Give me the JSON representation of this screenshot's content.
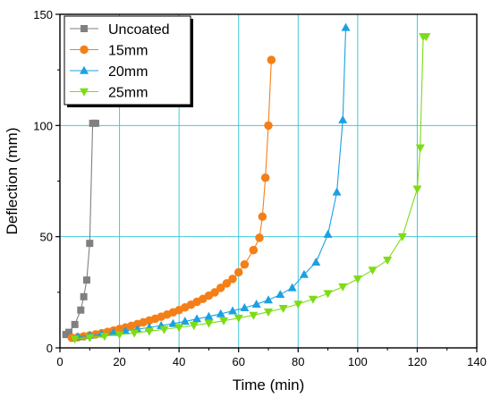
{
  "chart_data": {
    "type": "line",
    "title": "",
    "xlabel": "Time (min)",
    "ylabel": "Deflection (mm)",
    "xlim": [
      0,
      140
    ],
    "ylim": [
      0,
      150
    ],
    "x_ticks": [
      "0",
      "20",
      "40",
      "60",
      "80",
      "100",
      "120",
      "140"
    ],
    "y_ticks": [
      "0",
      "50",
      "100",
      "150"
    ],
    "grid": true,
    "grid_color": "#45c8dc",
    "legend_position": "top-left",
    "series": [
      {
        "name": "Uncoated",
        "color": "#808080",
        "marker": "square",
        "x": [
          2,
          3,
          5,
          7,
          8,
          9,
          10,
          11,
          12
        ],
        "y": [
          6,
          7,
          10.5,
          17,
          23,
          30.5,
          47,
          101,
          101
        ]
      },
      {
        "name": "15mm",
        "color": "#f57f17",
        "marker": "circle",
        "x": [
          4,
          6,
          8,
          10,
          12,
          14,
          16,
          18,
          20,
          22,
          24,
          26,
          28,
          30,
          32,
          34,
          36,
          38,
          40,
          42,
          44,
          46,
          48,
          50,
          52,
          54,
          56,
          58,
          60,
          62,
          65,
          67,
          68,
          69,
          70,
          71
        ],
        "y": [
          4.5,
          4.8,
          5.2,
          5.6,
          6.1,
          6.6,
          7.2,
          7.8,
          8.5,
          9.2,
          9.9,
          10.7,
          11.5,
          12.3,
          13.1,
          14,
          15,
          16,
          17,
          18.2,
          19.4,
          20.7,
          22,
          23.5,
          25,
          27,
          29,
          31,
          34,
          37.5,
          44,
          49.5,
          59,
          76.5,
          100,
          129.5
        ]
      },
      {
        "name": "20mm",
        "color": "#1ba1e2",
        "marker": "triangle-up",
        "x": [
          6,
          10,
          14,
          18,
          22,
          26,
          30,
          34,
          38,
          42,
          46,
          50,
          54,
          58,
          62,
          66,
          70,
          74,
          78,
          82,
          86,
          90,
          93,
          95,
          96
        ],
        "y": [
          5,
          5.6,
          6.2,
          6.9,
          7.6,
          8.4,
          9.2,
          10,
          10.9,
          11.9,
          13,
          14.1,
          15.3,
          16.6,
          18,
          19.6,
          21.5,
          24,
          27,
          33,
          38.5,
          51,
          70,
          102.5,
          144
        ]
      },
      {
        "name": "25mm",
        "color": "#7cdc16",
        "marker": "triangle-down",
        "x": [
          5,
          10,
          15,
          20,
          25,
          30,
          35,
          40,
          45,
          50,
          55,
          60,
          65,
          70,
          75,
          80,
          85,
          90,
          95,
          100,
          105,
          110,
          115,
          120,
          121,
          122,
          123
        ],
        "y": [
          4,
          4.6,
          5.3,
          6,
          6.7,
          7.5,
          8.3,
          9.2,
          10.1,
          11.1,
          12.2,
          13.4,
          14.7,
          16.2,
          17.8,
          19.7,
          21.9,
          24.5,
          27.5,
          31,
          35,
          39.5,
          50,
          71.5,
          90,
          140,
          140
        ]
      }
    ]
  }
}
